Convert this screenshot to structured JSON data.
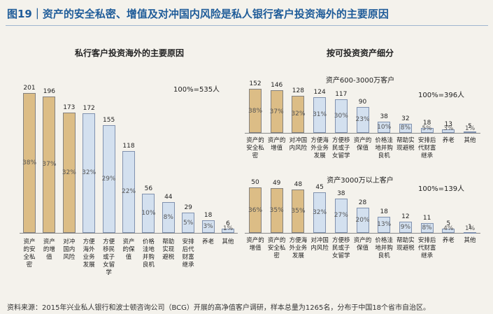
{
  "page_title": "图19｜资产的安全私密、增值及对冲国内风险是私人银行客户投资海外的主要原因",
  "group_heading": "按可投资资产细分",
  "source": "资料来源：2015年兴业私人银行和波士顿咨询公司（BCG）开展的高净值客户调研，样本总量为1265名，分布于中国18个省市自治区。",
  "chart_data": [
    {
      "type": "bar",
      "title": "私行客户投资海外的主要原因",
      "note": "100%=535人",
      "categories": [
        "资产的安全私密",
        "资产的增值",
        "对冲国内风险",
        "方便海外业务发展",
        "方便移民或子女留学",
        "资产的保值",
        "价格洼地并购良机",
        "帮助实现避税",
        "安排后代财富继承",
        "养老",
        "其他"
      ],
      "values": [
        201,
        196,
        173,
        172,
        155,
        118,
        56,
        44,
        29,
        18,
        6
      ],
      "percent_labels": [
        "38%",
        "37%",
        "32%",
        "32%",
        "29%",
        "22%",
        "10%",
        "8%",
        "5%",
        "3%",
        "1%"
      ],
      "colors": [
        "#dcbd86",
        "#dcbd86",
        "#dcbd86",
        "#d3e0ef",
        "#d3e0ef",
        "#d3e0ef",
        "#d3e0ef",
        "#d3e0ef",
        "#d3e0ef",
        "#d3e0ef",
        "#d3e0ef"
      ]
    },
    {
      "type": "bar",
      "title": "资产600-3000万客户",
      "note": "100%=396人",
      "categories": [
        "资产的安全私密",
        "资产的增值",
        "对冲国内风险",
        "方便海外业务发展",
        "方便移民或子女留学",
        "资产的保值",
        "价格洼地并购良机",
        "帮助实现避税",
        "安排后代财富继承",
        "养老",
        "其他"
      ],
      "values": [
        152,
        146,
        128,
        124,
        117,
        90,
        38,
        32,
        18,
        13,
        5
      ],
      "percent_labels": [
        "38%",
        "37%",
        "32%",
        "31%",
        "30%",
        "23%",
        "10%",
        "8%",
        "5%",
        "3%",
        "1%"
      ],
      "colors": [
        "#dcbd86",
        "#dcbd86",
        "#dcbd86",
        "#d3e0ef",
        "#d3e0ef",
        "#d3e0ef",
        "#d3e0ef",
        "#d3e0ef",
        "#d3e0ef",
        "#d3e0ef",
        "#d3e0ef"
      ]
    },
    {
      "type": "bar",
      "title": "资产3000万以上客户",
      "note": "100%=139人",
      "categories": [
        "资产的增值",
        "资产的安全私密",
        "方便海外业务发展",
        "对冲国内风险",
        "方便移民或子女留学",
        "资产的保值",
        "价格洼地并购良机",
        "帮助实现避税",
        "安排后代财富继承",
        "养老",
        "其他"
      ],
      "values": [
        50,
        49,
        48,
        45,
        38,
        28,
        18,
        12,
        11,
        5,
        1
      ],
      "percent_labels": [
        "36%",
        "35%",
        "35%",
        "32%",
        "27%",
        "20%",
        "13%",
        "9%",
        "8%",
        "4%",
        "1%"
      ],
      "colors": [
        "#dcbd86",
        "#dcbd86",
        "#dcbd86",
        "#d3e0ef",
        "#d3e0ef",
        "#d3e0ef",
        "#d3e0ef",
        "#d3e0ef",
        "#d3e0ef",
        "#d3e0ef",
        "#d3e0ef"
      ]
    }
  ]
}
